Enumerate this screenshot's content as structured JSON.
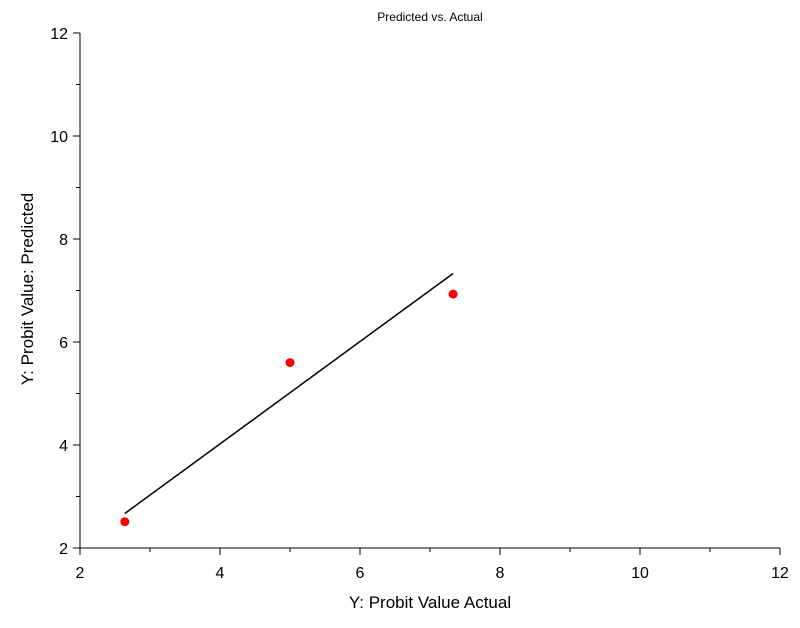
{
  "chart_data": {
    "type": "scatter",
    "title": "Predicted vs. Actual",
    "xlabel": "Y: Probit Value Actual",
    "ylabel": "Y: Probit Value: Predicted",
    "xlim": [
      2,
      12
    ],
    "ylim": [
      2,
      12
    ],
    "xticks": [
      "2",
      "4",
      "6",
      "8",
      "10",
      "12"
    ],
    "yticks": [
      "2",
      "4",
      "6",
      "8",
      "10",
      "12"
    ],
    "grid": false,
    "points_color": "#ff0000",
    "line_color": "#000000",
    "series": [
      {
        "x": [
          2.64,
          5.0,
          7.33
        ],
        "y": [
          2.51,
          5.6,
          6.93
        ]
      }
    ],
    "fit_line": {
      "x": [
        2.64,
        7.33
      ],
      "y": [
        2.67,
        7.33
      ]
    }
  }
}
